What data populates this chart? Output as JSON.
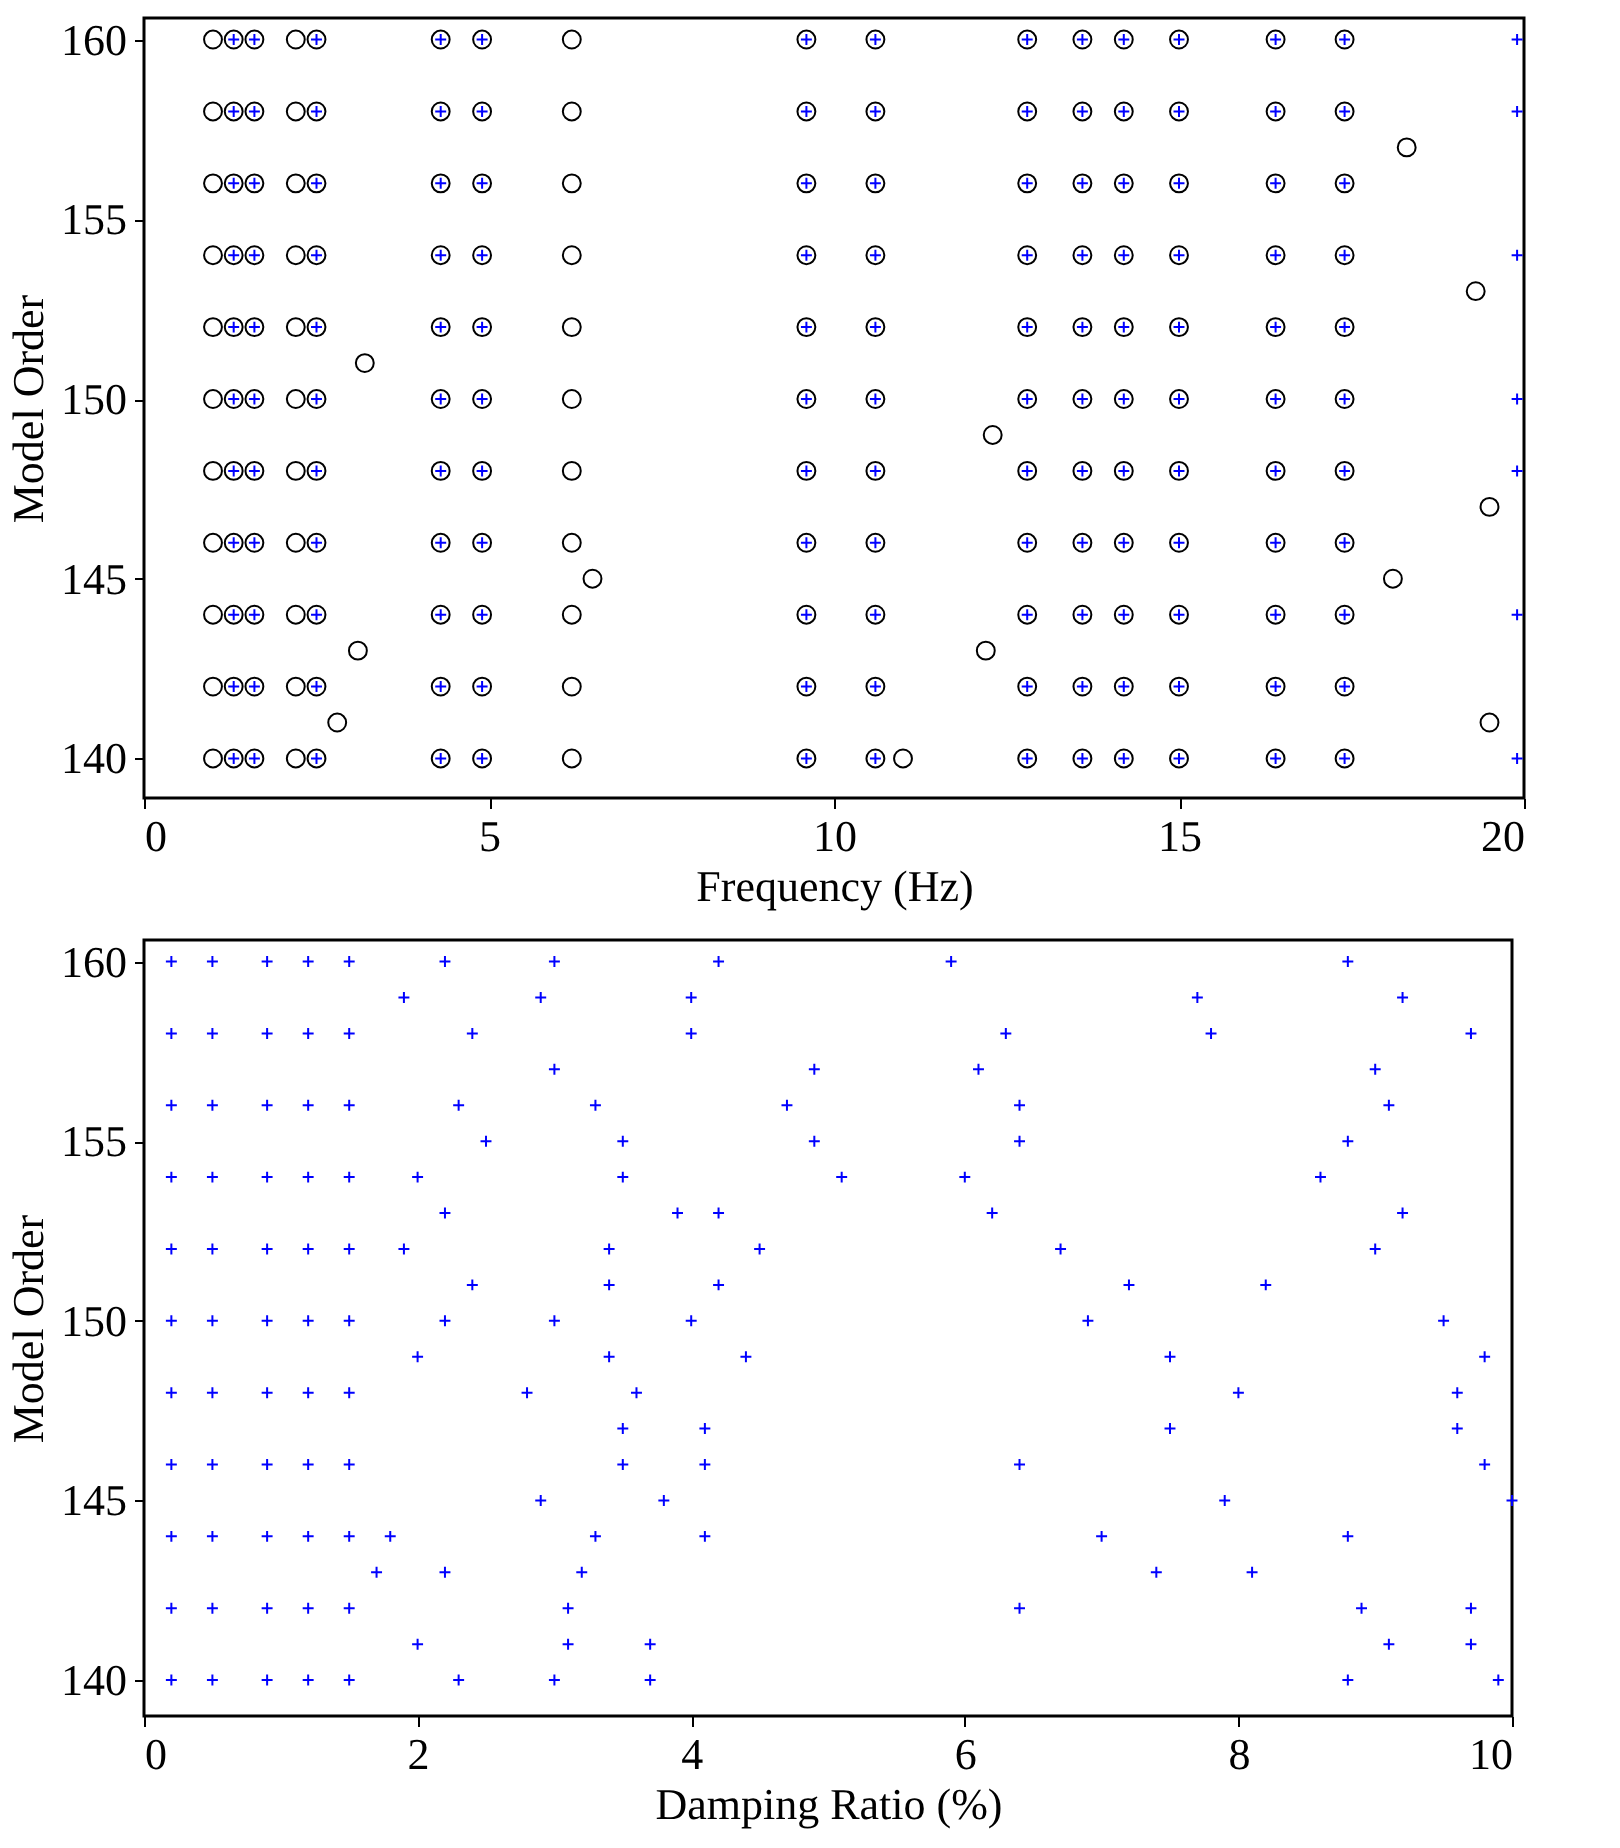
{
  "chart_data": [
    {
      "type": "scatter",
      "xlabel": "Frequency (Hz)",
      "ylabel": "Model Order",
      "xlim": [
        0,
        20
      ],
      "xticks": [
        0,
        5,
        10,
        15,
        20
      ],
      "ylim": [
        138.9,
        160.6
      ],
      "yticks": [
        140,
        145,
        150,
        155,
        160
      ],
      "series": [
        {
          "type": "scatter",
          "marker": "circle",
          "color": "#000000",
          "x": [
            1,
            1,
            1,
            1,
            1,
            1,
            1,
            1,
            1,
            1,
            1,
            1.3,
            1.3,
            1.3,
            1.3,
            1.3,
            1.3,
            1.3,
            1.3,
            1.3,
            1.3,
            1.3,
            1.6,
            1.6,
            1.6,
            1.6,
            1.6,
            1.6,
            1.6,
            1.6,
            1.6,
            1.6,
            1.6,
            2.2,
            2.2,
            2.2,
            2.2,
            2.2,
            2.2,
            2.2,
            2.2,
            2.2,
            2.2,
            2.2,
            2.5,
            2.5,
            2.5,
            2.5,
            2.5,
            2.5,
            2.5,
            2.5,
            2.5,
            2.5,
            2.5,
            4.3,
            4.3,
            4.3,
            4.3,
            4.3,
            4.3,
            4.3,
            4.3,
            4.3,
            4.3,
            4.3,
            4.9,
            4.9,
            4.9,
            4.9,
            4.9,
            4.9,
            4.9,
            4.9,
            4.9,
            4.9,
            4.9,
            6.2,
            6.2,
            6.2,
            6.2,
            6.2,
            6.2,
            6.2,
            6.2,
            6.2,
            6.2,
            6.2,
            9.6,
            9.6,
            9.6,
            9.6,
            9.6,
            9.6,
            9.6,
            9.6,
            9.6,
            9.6,
            9.6,
            10.6,
            10.6,
            10.6,
            10.6,
            10.6,
            10.6,
            10.6,
            10.6,
            10.6,
            10.6,
            10.6,
            12.8,
            12.8,
            12.8,
            12.8,
            12.8,
            12.8,
            12.8,
            12.8,
            12.8,
            12.8,
            12.8,
            13.6,
            13.6,
            13.6,
            13.6,
            13.6,
            13.6,
            13.6,
            13.6,
            13.6,
            13.6,
            13.6,
            14.2,
            14.2,
            14.2,
            14.2,
            14.2,
            14.2,
            14.2,
            14.2,
            14.2,
            14.2,
            14.2,
            15,
            15,
            15,
            15,
            15,
            15,
            15,
            15,
            15,
            15,
            15,
            16.4,
            16.4,
            16.4,
            16.4,
            16.4,
            16.4,
            16.4,
            16.4,
            16.4,
            16.4,
            16.4,
            17.4,
            17.4,
            17.4,
            17.4,
            17.4,
            17.4,
            17.4,
            17.4,
            17.4,
            17.4,
            17.4,
            2.8,
            3.1,
            3.2,
            6.5,
            12.3,
            12.2,
            18.3,
            19.5,
            19.3,
            19.5,
            11,
            18.1
          ],
          "values": [
            140,
            142,
            144,
            146,
            148,
            150,
            152,
            154,
            156,
            158,
            160,
            140,
            142,
            144,
            146,
            148,
            150,
            152,
            154,
            156,
            158,
            160,
            140,
            142,
            144,
            146,
            148,
            150,
            152,
            154,
            156,
            158,
            160,
            140,
            142,
            144,
            146,
            148,
            150,
            152,
            154,
            156,
            158,
            160,
            140,
            142,
            144,
            146,
            148,
            150,
            152,
            154,
            156,
            158,
            160,
            140,
            142,
            144,
            146,
            148,
            150,
            152,
            154,
            156,
            158,
            160,
            140,
            142,
            144,
            146,
            148,
            150,
            152,
            154,
            156,
            158,
            160,
            140,
            142,
            144,
            146,
            148,
            150,
            152,
            154,
            156,
            158,
            160,
            140,
            142,
            144,
            146,
            148,
            150,
            152,
            154,
            156,
            158,
            160,
            140,
            142,
            144,
            146,
            148,
            150,
            152,
            154,
            156,
            158,
            160,
            140,
            142,
            144,
            146,
            148,
            150,
            152,
            154,
            156,
            158,
            160,
            140,
            142,
            144,
            146,
            148,
            150,
            152,
            154,
            156,
            158,
            160,
            140,
            142,
            144,
            146,
            148,
            150,
            152,
            154,
            156,
            158,
            160,
            140,
            142,
            144,
            146,
            148,
            150,
            152,
            154,
            156,
            158,
            160,
            140,
            142,
            144,
            146,
            148,
            150,
            152,
            154,
            156,
            158,
            160,
            140,
            142,
            144,
            146,
            148,
            150,
            152,
            154,
            156,
            158,
            160,
            141,
            143,
            151,
            145,
            149,
            143,
            157,
            147,
            153,
            141,
            140,
            145
          ]
        },
        {
          "type": "scatter",
          "marker": "cross",
          "color": "#0000ff",
          "x": [
            1.3,
            1.3,
            1.3,
            1.3,
            1.3,
            1.3,
            1.3,
            1.3,
            1.3,
            1.3,
            1.3,
            1.6,
            1.6,
            1.6,
            1.6,
            1.6,
            1.6,
            1.6,
            1.6,
            1.6,
            1.6,
            1.6,
            2.5,
            2.5,
            2.5,
            2.5,
            2.5,
            2.5,
            2.5,
            2.5,
            2.5,
            2.5,
            2.5,
            4.3,
            4.3,
            4.3,
            4.3,
            4.3,
            4.3,
            4.3,
            4.3,
            4.3,
            4.3,
            4.3,
            4.9,
            4.9,
            4.9,
            4.9,
            4.9,
            4.9,
            4.9,
            4.9,
            4.9,
            4.9,
            4.9,
            9.6,
            9.6,
            9.6,
            9.6,
            9.6,
            9.6,
            9.6,
            9.6,
            9.6,
            9.6,
            9.6,
            10.6,
            10.6,
            10.6,
            10.6,
            10.6,
            10.6,
            10.6,
            10.6,
            10.6,
            10.6,
            10.6,
            12.8,
            12.8,
            12.8,
            12.8,
            12.8,
            12.8,
            12.8,
            12.8,
            12.8,
            12.8,
            12.8,
            13.6,
            13.6,
            13.6,
            13.6,
            13.6,
            13.6,
            13.6,
            13.6,
            13.6,
            13.6,
            13.6,
            14.2,
            14.2,
            14.2,
            14.2,
            14.2,
            14.2,
            14.2,
            14.2,
            14.2,
            14.2,
            14.2,
            15,
            15,
            15,
            15,
            15,
            15,
            15,
            15,
            15,
            15,
            15,
            16.4,
            16.4,
            16.4,
            16.4,
            16.4,
            16.4,
            16.4,
            16.4,
            16.4,
            16.4,
            16.4,
            17.4,
            17.4,
            17.4,
            17.4,
            17.4,
            17.4,
            17.4,
            17.4,
            17.4,
            17.4,
            17.4,
            19.9,
            19.9,
            19.9,
            19.9,
            19.9,
            19.9,
            19.9
          ],
          "values": [
            140,
            142,
            144,
            146,
            148,
            150,
            152,
            154,
            156,
            158,
            160,
            140,
            142,
            144,
            146,
            148,
            150,
            152,
            154,
            156,
            158,
            160,
            140,
            142,
            144,
            146,
            148,
            150,
            152,
            154,
            156,
            158,
            160,
            140,
            142,
            144,
            146,
            148,
            150,
            152,
            154,
            156,
            158,
            160,
            140,
            142,
            144,
            146,
            148,
            150,
            152,
            154,
            156,
            158,
            160,
            140,
            142,
            144,
            146,
            148,
            150,
            152,
            154,
            156,
            158,
            160,
            140,
            142,
            144,
            146,
            148,
            150,
            152,
            154,
            156,
            158,
            160,
            140,
            142,
            144,
            146,
            148,
            150,
            152,
            154,
            156,
            158,
            160,
            140,
            142,
            144,
            146,
            148,
            150,
            152,
            154,
            156,
            158,
            160,
            140,
            142,
            144,
            146,
            148,
            150,
            152,
            154,
            156,
            158,
            160,
            140,
            142,
            144,
            146,
            148,
            150,
            152,
            154,
            156,
            158,
            160,
            140,
            142,
            144,
            146,
            148,
            150,
            152,
            154,
            156,
            158,
            160,
            140,
            142,
            144,
            146,
            148,
            150,
            152,
            154,
            156,
            158,
            160,
            140,
            144,
            148,
            150,
            154,
            158,
            160
          ]
        }
      ]
    },
    {
      "type": "scatter",
      "xlabel": "Damping Ratio (%)",
      "ylabel": "Model Order",
      "xlim": [
        0,
        10
      ],
      "xticks": [
        0,
        2,
        4,
        6,
        8,
        10
      ],
      "ylim": [
        139,
        160.6
      ],
      "yticks": [
        140,
        145,
        150,
        155,
        160
      ],
      "series": [
        {
          "type": "scatter",
          "marker": "cross",
          "color": "#0000ff",
          "x": [
            0.2,
            0.2,
            0.2,
            0.2,
            0.2,
            0.2,
            0.2,
            0.2,
            0.2,
            0.2,
            0.2,
            0.5,
            0.5,
            0.5,
            0.5,
            0.5,
            0.5,
            0.5,
            0.5,
            0.5,
            0.5,
            0.5,
            0.9,
            0.9,
            0.9,
            0.9,
            0.9,
            0.9,
            0.9,
            0.9,
            0.9,
            0.9,
            0.9,
            1.2,
            1.2,
            1.2,
            1.2,
            1.2,
            1.2,
            1.2,
            1.2,
            1.2,
            1.2,
            1.2,
            1.5,
            1.5,
            1.5,
            1.5,
            1.5,
            1.5,
            1.5,
            1.5,
            1.5,
            1.5,
            1.5,
            2.2,
            3,
            4.2,
            5.9,
            8.8,
            1.9,
            2.9,
            4,
            7.7,
            9.2,
            2.4,
            4,
            6.3,
            7.8,
            9.7,
            3,
            4.9,
            6.1,
            9,
            2.3,
            3.3,
            4.7,
            6.4,
            9.1,
            2.5,
            3.5,
            4.9,
            6.4,
            8.8,
            2,
            3.5,
            5.1,
            6,
            8.6,
            2.2,
            3.9,
            4.2,
            6.2,
            9.2,
            1.9,
            3.4,
            4.5,
            6.7,
            9,
            2.4,
            3.4,
            4.2,
            7.2,
            8.2,
            2.2,
            3,
            4,
            6.9,
            9.5,
            2,
            3.4,
            4.4,
            7.5,
            9.8,
            2.8,
            3.6,
            8,
            9.6,
            3.5,
            4.1,
            7.5,
            9.6,
            3.5,
            4.1,
            6.4,
            9.8,
            2.9,
            3.8,
            7.9,
            10,
            1.8,
            3.3,
            4.1,
            7,
            8.8,
            1.7,
            3.2,
            7.4,
            8.1,
            2.2,
            3.1,
            6.4,
            9.7,
            8.9,
            2,
            3.1,
            3.7,
            9.1,
            9.7,
            2.3,
            3,
            3.7,
            8.8,
            9.9
          ],
          "values": [
            140,
            142,
            144,
            146,
            148,
            150,
            152,
            154,
            156,
            158,
            160,
            140,
            142,
            144,
            146,
            148,
            150,
            152,
            154,
            156,
            158,
            160,
            140,
            142,
            144,
            146,
            148,
            150,
            152,
            154,
            156,
            158,
            160,
            140,
            142,
            144,
            146,
            148,
            150,
            152,
            154,
            156,
            158,
            160,
            140,
            142,
            144,
            146,
            148,
            150,
            152,
            154,
            156,
            158,
            160,
            160,
            160,
            160,
            160,
            160,
            159,
            159,
            159,
            159,
            159,
            158,
            158,
            158,
            158,
            158,
            157,
            157,
            157,
            157,
            156,
            156,
            156,
            156,
            156,
            155,
            155,
            155,
            155,
            155,
            154,
            154,
            154,
            154,
            154,
            153,
            153,
            153,
            153,
            153,
            152,
            152,
            152,
            152,
            152,
            151,
            151,
            151,
            151,
            151,
            150,
            150,
            150,
            150,
            150,
            149,
            149,
            149,
            149,
            149,
            148,
            148,
            148,
            148,
            147,
            147,
            147,
            147,
            146,
            146,
            146,
            146,
            145,
            145,
            145,
            145,
            144,
            144,
            144,
            144,
            144,
            143,
            143,
            143,
            143,
            143,
            142,
            142,
            142,
            142,
            141,
            141,
            141,
            141,
            141,
            140,
            140,
            140,
            140,
            140
          ]
        }
      ]
    }
  ]
}
